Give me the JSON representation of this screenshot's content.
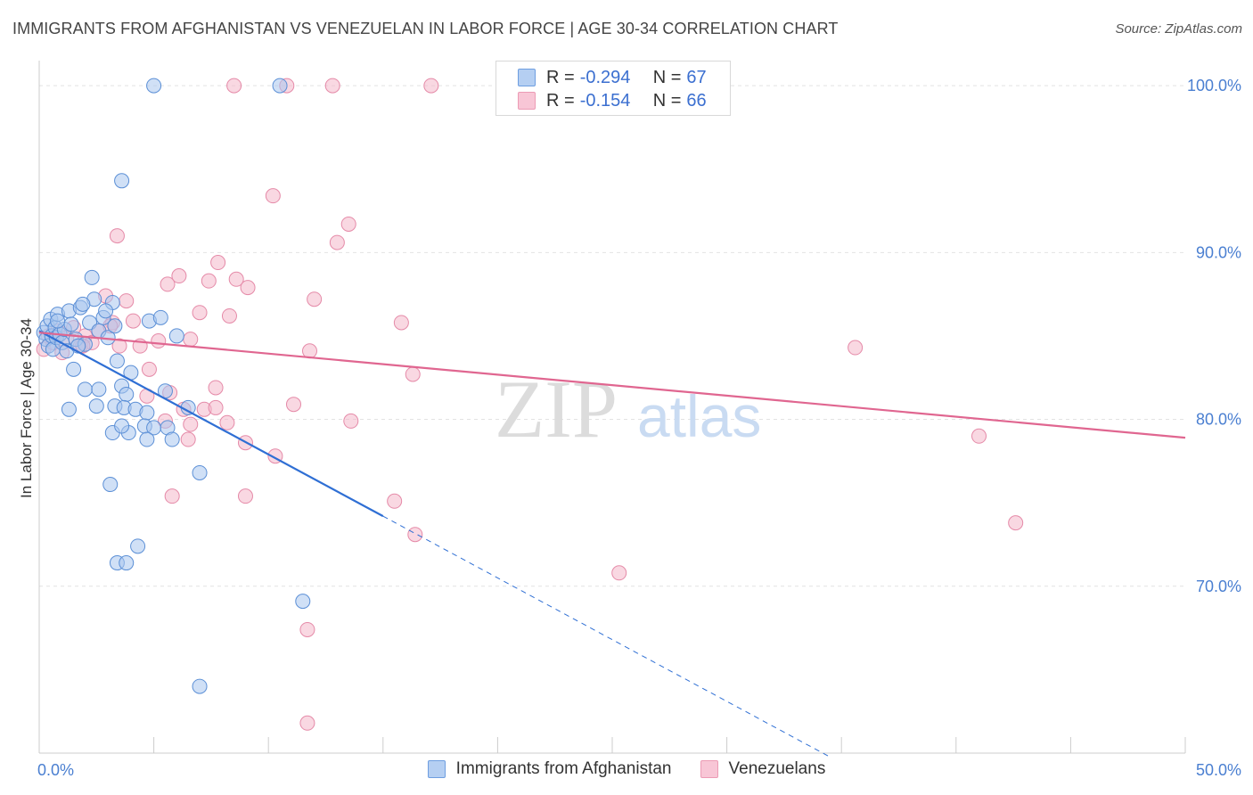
{
  "title": "IMMIGRANTS FROM AFGHANISTAN VS VENEZUELAN IN LABOR FORCE | AGE 30-34 CORRELATION CHART",
  "source": "Source: ZipAtlas.com",
  "watermark": {
    "zip": "ZIP",
    "atlas": "atlas"
  },
  "legend": {
    "r_label": "R =",
    "n_label": "N =",
    "rows": [
      {
        "r": "-0.294",
        "n": "67"
      },
      {
        "r": "-0.154",
        "n": "66"
      }
    ]
  },
  "colors": {
    "blue_fill": "#a9c7ef",
    "blue_stroke": "#5b8fd6",
    "blue_line": "#2f6fd4",
    "pink_fill": "#f4b8cb",
    "pink_stroke": "#e58aa8",
    "pink_line": "#e06690",
    "grid": "#e2e2e2",
    "tick_text": "#4a7fd1"
  },
  "chart_data": {
    "type": "scatter",
    "title": "IMMIGRANTS FROM AFGHANISTAN VS VENEZUELAN IN LABOR FORCE | AGE 30-34 CORRELATION CHART",
    "xlabel": "",
    "ylabel": "In Labor Force | Age 30-34",
    "xlim": [
      0,
      50
    ],
    "ylim": [
      60,
      101.5
    ],
    "x_tick_labels": [
      {
        "value": 0,
        "label": "0.0%"
      },
      {
        "value": 50,
        "label": "50.0%"
      }
    ],
    "y_tick_labels": [
      {
        "value": 70,
        "label": "70.0%"
      },
      {
        "value": 80,
        "label": "80.0%"
      },
      {
        "value": 90,
        "label": "90.0%"
      },
      {
        "value": 100,
        "label": "100.0%"
      }
    ],
    "series": [
      {
        "name": "Immigrants from Afghanistan",
        "color": "blue",
        "r": -0.294,
        "n": 67,
        "trend": {
          "x_start": 0,
          "y_start": 85.3,
          "x_solid_end": 15,
          "x_end": 34.5
        },
        "points": [
          [
            0.2,
            85.2
          ],
          [
            0.3,
            84.8
          ],
          [
            0.35,
            85.6
          ],
          [
            0.4,
            84.4
          ],
          [
            0.5,
            86.0
          ],
          [
            0.55,
            85.0
          ],
          [
            0.6,
            84.2
          ],
          [
            0.7,
            85.5
          ],
          [
            0.75,
            84.9
          ],
          [
            0.8,
            86.3
          ],
          [
            0.9,
            85.1
          ],
          [
            1.0,
            84.6
          ],
          [
            1.1,
            85.4
          ],
          [
            1.2,
            84.1
          ],
          [
            1.3,
            86.5
          ],
          [
            1.4,
            85.7
          ],
          [
            1.5,
            83.0
          ],
          [
            1.6,
            84.8
          ],
          [
            1.8,
            86.7
          ],
          [
            2.0,
            84.5
          ],
          [
            2.2,
            85.8
          ],
          [
            2.4,
            87.2
          ],
          [
            2.6,
            85.3
          ],
          [
            2.8,
            86.1
          ],
          [
            3.0,
            84.9
          ],
          [
            3.2,
            87.0
          ],
          [
            3.4,
            83.5
          ],
          [
            3.6,
            82.0
          ],
          [
            3.8,
            81.5
          ],
          [
            4.0,
            82.8
          ],
          [
            2.0,
            81.8
          ],
          [
            2.6,
            81.8
          ],
          [
            1.3,
            80.6
          ],
          [
            2.5,
            80.8
          ],
          [
            3.3,
            80.8
          ],
          [
            3.7,
            80.7
          ],
          [
            4.2,
            80.6
          ],
          [
            4.7,
            80.4
          ],
          [
            5.5,
            81.7
          ],
          [
            6.5,
            80.7
          ],
          [
            3.2,
            79.2
          ],
          [
            3.9,
            79.2
          ],
          [
            3.6,
            79.6
          ],
          [
            4.6,
            79.6
          ],
          [
            5.0,
            79.5
          ],
          [
            4.7,
            78.8
          ],
          [
            5.6,
            79.5
          ],
          [
            5.8,
            78.8
          ],
          [
            2.3,
            88.5
          ],
          [
            3.6,
            94.3
          ],
          [
            5.0,
            100.0
          ],
          [
            10.5,
            100.0
          ],
          [
            7.0,
            76.8
          ],
          [
            3.1,
            76.1
          ],
          [
            4.3,
            72.4
          ],
          [
            3.4,
            71.4
          ],
          [
            3.8,
            71.4
          ],
          [
            11.5,
            69.1
          ],
          [
            7.0,
            64.0
          ],
          [
            4.8,
            85.9
          ],
          [
            5.3,
            86.1
          ],
          [
            1.9,
            86.9
          ],
          [
            2.9,
            86.5
          ],
          [
            3.3,
            85.6
          ],
          [
            6.0,
            85.0
          ],
          [
            0.8,
            85.9
          ],
          [
            1.7,
            84.4
          ]
        ]
      },
      {
        "name": "Venezuelans",
        "color": "pink",
        "r": -0.154,
        "n": 66,
        "trend": {
          "x_start": 0,
          "y_start": 85.2,
          "x_end": 50,
          "y_end": 78.9
        },
        "points": [
          [
            0.2,
            84.2
          ],
          [
            0.4,
            85.0
          ],
          [
            0.6,
            84.6
          ],
          [
            0.8,
            85.3
          ],
          [
            1.0,
            84.0
          ],
          [
            1.2,
            84.9
          ],
          [
            1.5,
            85.5
          ],
          [
            1.8,
            84.4
          ],
          [
            2.0,
            85.0
          ],
          [
            2.3,
            84.6
          ],
          [
            2.6,
            85.3
          ],
          [
            2.9,
            87.4
          ],
          [
            3.2,
            85.8
          ],
          [
            3.5,
            84.4
          ],
          [
            3.8,
            87.1
          ],
          [
            4.1,
            85.9
          ],
          [
            4.4,
            84.4
          ],
          [
            4.8,
            83.0
          ],
          [
            5.2,
            84.7
          ],
          [
            5.6,
            88.1
          ],
          [
            6.1,
            88.6
          ],
          [
            6.6,
            84.8
          ],
          [
            7.0,
            86.4
          ],
          [
            7.4,
            88.3
          ],
          [
            7.8,
            89.4
          ],
          [
            8.3,
            86.2
          ],
          [
            8.6,
            88.4
          ],
          [
            9.1,
            87.9
          ],
          [
            3.4,
            91.0
          ],
          [
            10.2,
            93.4
          ],
          [
            12.0,
            87.2
          ],
          [
            13.0,
            90.6
          ],
          [
            13.5,
            91.7
          ],
          [
            11.8,
            84.1
          ],
          [
            15.8,
            85.8
          ],
          [
            16.3,
            82.7
          ],
          [
            4.7,
            81.4
          ],
          [
            5.7,
            81.6
          ],
          [
            6.3,
            80.6
          ],
          [
            7.2,
            80.6
          ],
          [
            7.7,
            81.9
          ],
          [
            7.7,
            80.7
          ],
          [
            11.1,
            80.9
          ],
          [
            5.5,
            79.9
          ],
          [
            6.6,
            79.7
          ],
          [
            8.2,
            79.8
          ],
          [
            13.6,
            79.9
          ],
          [
            6.5,
            78.8
          ],
          [
            9.0,
            78.6
          ],
          [
            10.3,
            77.8
          ],
          [
            5.8,
            75.4
          ],
          [
            9.0,
            75.4
          ],
          [
            15.5,
            75.1
          ],
          [
            16.4,
            73.1
          ],
          [
            25.3,
            70.8
          ],
          [
            42.6,
            73.8
          ],
          [
            41.0,
            79.0
          ],
          [
            35.6,
            84.3
          ],
          [
            11.7,
            67.4
          ],
          [
            11.7,
            61.8
          ],
          [
            8.5,
            100.0
          ],
          [
            10.8,
            100.0
          ],
          [
            12.8,
            100.0
          ],
          [
            17.1,
            100.0
          ],
          [
            1.9,
            84.4
          ],
          [
            3.1,
            85.6
          ]
        ]
      }
    ]
  }
}
